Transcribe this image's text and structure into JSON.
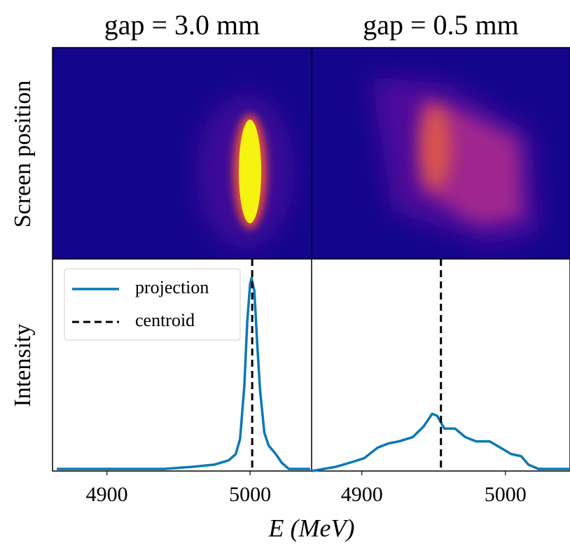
{
  "figure": {
    "xlabel": "E (MeV)",
    "ylabel_top": "Screen position",
    "ylabel_bottom": "Intensity",
    "legend_loc": "upper left"
  },
  "chart_data": [
    {
      "type": "line",
      "title": "gap = 3.0 mm",
      "x": [
        4865,
        4900,
        4940,
        4960,
        4975,
        4985,
        4990,
        4993,
        4996,
        4998,
        5000,
        5001,
        5003,
        5005,
        5007,
        5010,
        5013,
        5018,
        5022,
        5027,
        5042
      ],
      "series": [
        {
          "name": "projection",
          "color": "#0a78b8",
          "values": [
            0.01,
            0.01,
            0.01,
            0.02,
            0.03,
            0.05,
            0.08,
            0.15,
            0.4,
            0.7,
            0.88,
            0.91,
            0.85,
            0.6,
            0.38,
            0.18,
            0.12,
            0.08,
            0.04,
            0.01,
            0.01
          ]
        }
      ],
      "centroid": {
        "name": "centroid",
        "value": 5001.5,
        "color": "#000000"
      },
      "xlim": [
        4862,
        5043
      ],
      "xticks": [
        4900,
        5000
      ],
      "ylim": [
        0,
        1
      ]
    },
    {
      "type": "line",
      "title": "gap = 0.5 mm",
      "x": [
        4865,
        4882,
        4892,
        4901.5,
        4911,
        4918.5,
        4926,
        4935.5,
        4943,
        4949,
        4952.5,
        4957.5,
        4965,
        4972,
        4979.5,
        4989,
        4996.5,
        5004,
        5011,
        5016,
        5023,
        5045
      ],
      "series": [
        {
          "color": "#0a78b8",
          "values": [
            0.0,
            0.02,
            0.04,
            0.06,
            0.11,
            0.13,
            0.14,
            0.16,
            0.21,
            0.27,
            0.26,
            0.2,
            0.2,
            0.16,
            0.14,
            0.14,
            0.11,
            0.08,
            0.07,
            0.03,
            0.01,
            0.01
          ]
        }
      ],
      "centroid": {
        "value": 4955.1,
        "color": "#000000"
      },
      "xlim": [
        4865,
        5045
      ],
      "xticks": [
        4900,
        5000
      ],
      "ylim": [
        0,
        1
      ]
    }
  ]
}
